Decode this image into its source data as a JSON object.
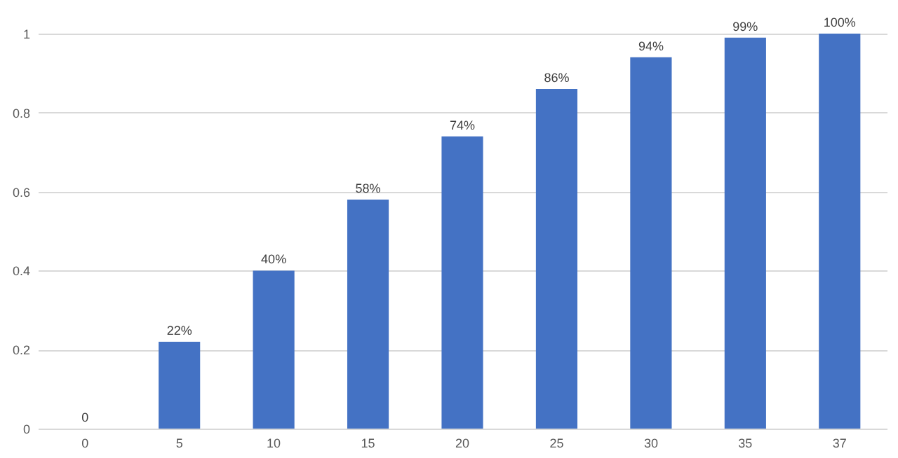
{
  "chart_data": {
    "type": "bar",
    "categories": [
      "0",
      "5",
      "10",
      "15",
      "20",
      "25",
      "30",
      "35",
      "37"
    ],
    "values": [
      0,
      0.22,
      0.4,
      0.58,
      0.74,
      0.86,
      0.94,
      0.99,
      1.0
    ],
    "value_labels": [
      "0",
      "22%",
      "40%",
      "58%",
      "74%",
      "86%",
      "94%",
      "99%",
      "100%"
    ],
    "color": "#4472c4",
    "ylim": [
      0,
      1
    ],
    "yticks": [
      0,
      0.2,
      0.4,
      0.6,
      0.8,
      1
    ],
    "grid": "y"
  }
}
